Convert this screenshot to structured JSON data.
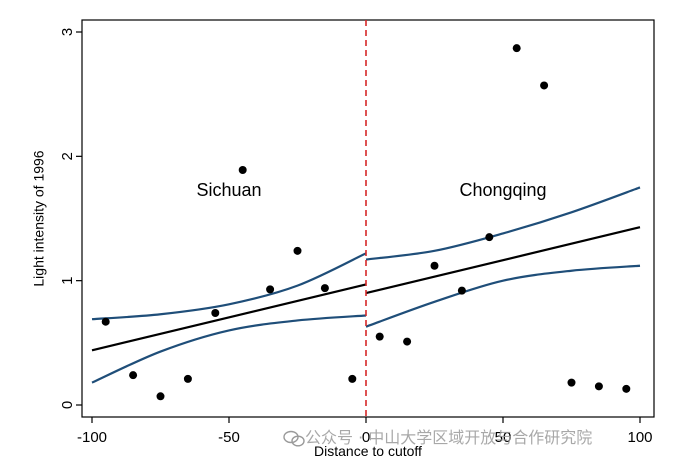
{
  "chart_data": {
    "type": "scatter",
    "xlabel": "Distance to cutoff",
    "ylabel": "Light intensity of 1996",
    "xlim": [
      -100,
      100
    ],
    "ylim": [
      0,
      3
    ],
    "x_ticks": [
      -100,
      -50,
      0,
      50,
      100
    ],
    "y_ticks": [
      0,
      1,
      2,
      3
    ],
    "x_tick_labels": [
      "-100",
      "-50",
      "0",
      "50",
      "100"
    ],
    "y_tick_labels": [
      "0",
      "1",
      "2",
      "3"
    ],
    "cutoff": 0,
    "annotations": [
      {
        "text": "Sichuan",
        "x": -50,
        "y": 1.68
      },
      {
        "text": "Chongqing",
        "x": 50,
        "y": 1.68
      }
    ],
    "points": [
      {
        "x": -95,
        "y": 0.67
      },
      {
        "x": -85,
        "y": 0.24
      },
      {
        "x": -75,
        "y": 0.07
      },
      {
        "x": -65,
        "y": 0.21
      },
      {
        "x": -55,
        "y": 0.74
      },
      {
        "x": -45,
        "y": 1.89
      },
      {
        "x": -35,
        "y": 0.93
      },
      {
        "x": -25,
        "y": 1.24
      },
      {
        "x": -15,
        "y": 0.94
      },
      {
        "x": -5,
        "y": 0.21
      },
      {
        "x": 5,
        "y": 0.55
      },
      {
        "x": 15,
        "y": 0.51
      },
      {
        "x": 25,
        "y": 1.12
      },
      {
        "x": 35,
        "y": 0.92
      },
      {
        "x": 45,
        "y": 1.35
      },
      {
        "x": 55,
        "y": 2.87
      },
      {
        "x": 65,
        "y": 2.57
      },
      {
        "x": 75,
        "y": 0.18
      },
      {
        "x": 85,
        "y": 0.15
      },
      {
        "x": 95,
        "y": 0.13
      }
    ],
    "fit_left": {
      "x": [
        -100,
        0
      ],
      "y": [
        0.44,
        0.97
      ]
    },
    "fit_right": {
      "x": [
        0,
        100
      ],
      "y": [
        0.9,
        1.43
      ]
    },
    "ci_left": {
      "x": [
        -100,
        -75,
        -50,
        -25,
        0
      ],
      "upper": [
        0.69,
        0.73,
        0.81,
        0.96,
        1.22
      ],
      "lower": [
        0.18,
        0.43,
        0.6,
        0.68,
        0.72
      ]
    },
    "ci_right": {
      "x": [
        0,
        25,
        50,
        75,
        100
      ],
      "upper": [
        1.17,
        1.24,
        1.38,
        1.55,
        1.75
      ],
      "lower": [
        0.63,
        0.83,
        1.0,
        1.08,
        1.12
      ]
    },
    "grid": false,
    "colors": {
      "points": "#000000",
      "fit_line": "#000000",
      "ci_band": "#1f4e79",
      "cutoff_line": "#d62728",
      "axis": "#000000"
    }
  },
  "watermark": {
    "text": "公众号 · 中山大学区域开放与合作研究院",
    "icon": "wechat-icon"
  }
}
